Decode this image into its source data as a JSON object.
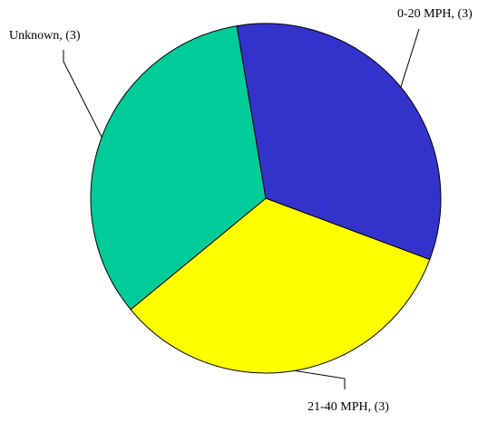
{
  "chart_data": {
    "type": "pie",
    "values": [
      3,
      3,
      3
    ],
    "value_labels": [
      "0-20 MPH, (3)",
      "21-40 MPH, (3)",
      "Unknown, (3)"
    ],
    "colors": [
      "#3333cc",
      "#ffff00",
      "#00cc99"
    ]
  }
}
